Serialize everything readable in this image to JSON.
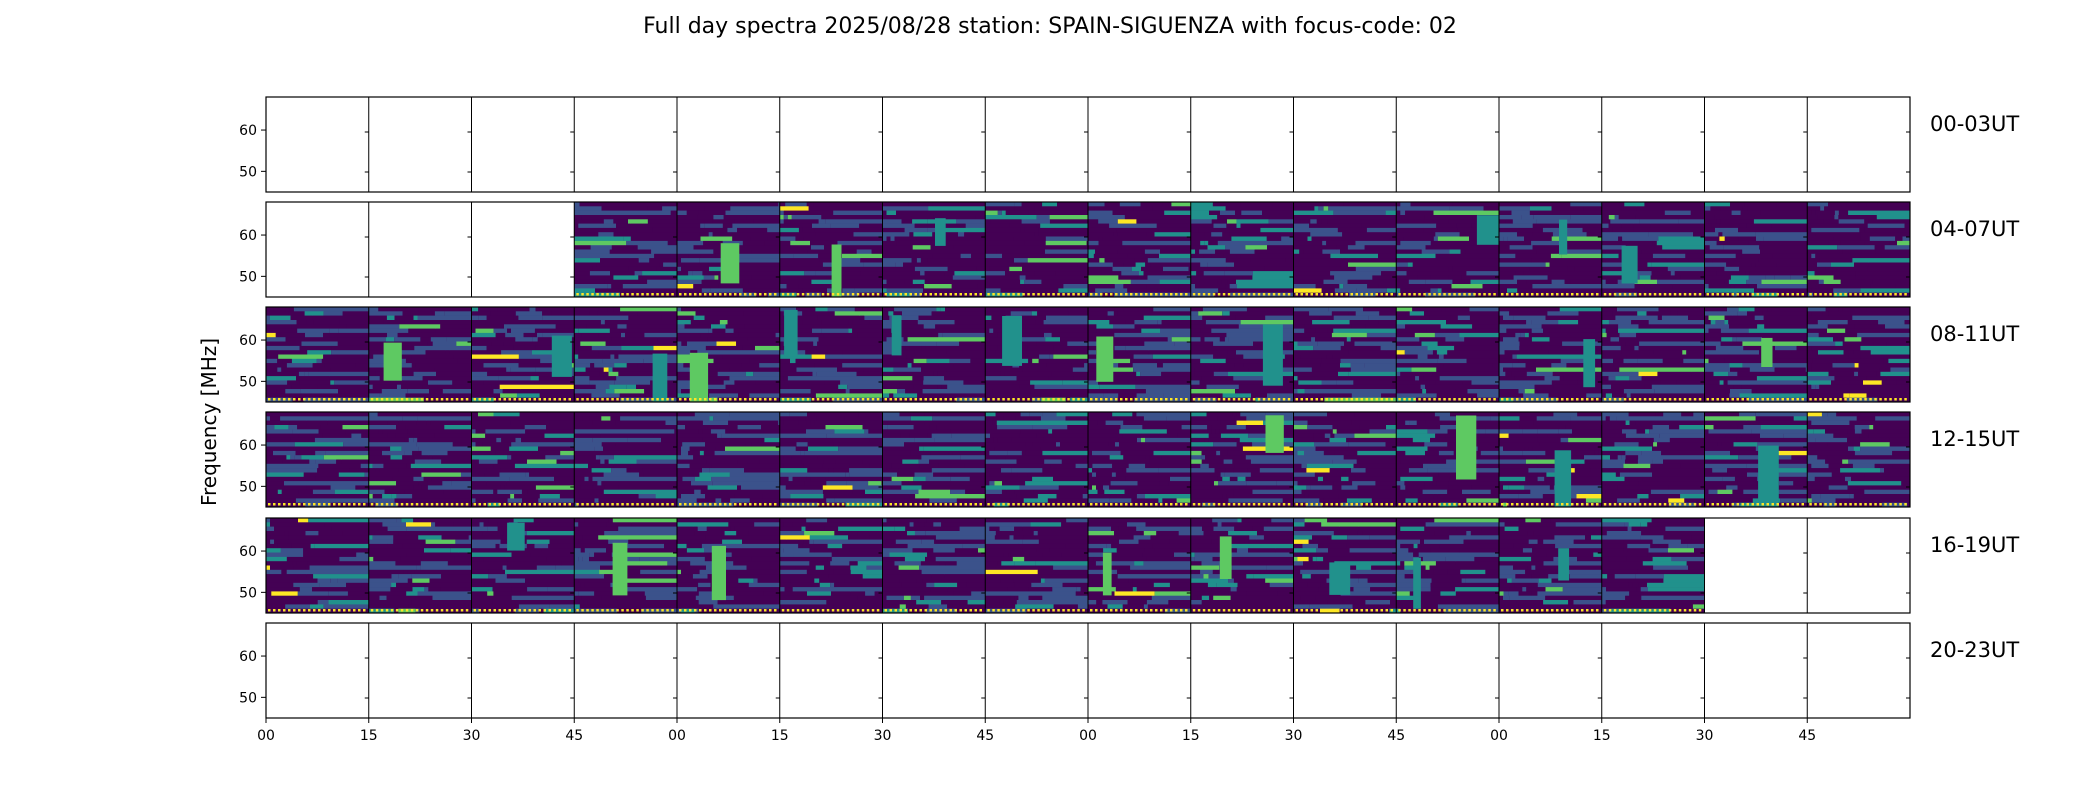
{
  "chart_data": {
    "type": "heatmap",
    "title": "Full day spectra 2025/08/28 station: SPAIN-SIGUENZA with focus-code: 02",
    "ylabel": "Frequency [MHz]",
    "xlabel": "",
    "y_ticks": [
      60,
      50
    ],
    "y_range": [
      45,
      68
    ],
    "x_tick_labels": [
      "00",
      "15",
      "30",
      "45",
      "00",
      "15",
      "30",
      "45",
      "00",
      "15",
      "30",
      "45",
      "00",
      "15",
      "30",
      "45"
    ],
    "rows": [
      {
        "label": "00-03UT",
        "has_data": [
          0,
          0,
          0,
          0,
          0,
          0,
          0,
          0,
          0,
          0,
          0,
          0,
          0,
          0,
          0,
          0
        ]
      },
      {
        "label": "04-07UT",
        "has_data": [
          0,
          0,
          0,
          1,
          1,
          1,
          1,
          1,
          1,
          1,
          1,
          1,
          1,
          1,
          1,
          1
        ]
      },
      {
        "label": "08-11UT",
        "has_data": [
          1,
          1,
          1,
          1,
          1,
          1,
          1,
          1,
          1,
          1,
          1,
          1,
          1,
          1,
          1,
          1
        ]
      },
      {
        "label": "12-15UT",
        "has_data": [
          1,
          1,
          1,
          1,
          1,
          1,
          1,
          1,
          1,
          1,
          1,
          1,
          1,
          1,
          1,
          1
        ]
      },
      {
        "label": "16-19UT",
        "has_data": [
          1,
          1,
          1,
          1,
          1,
          1,
          1,
          1,
          1,
          1,
          1,
          1,
          1,
          1,
          0,
          0
        ]
      },
      {
        "label": "20-23UT",
        "has_data": [
          0,
          0,
          0,
          0,
          0,
          0,
          0,
          0,
          0,
          0,
          0,
          0,
          0,
          0,
          0,
          0
        ]
      }
    ],
    "colormap": [
      "#440154",
      "#3b528b",
      "#21918c",
      "#5ec962",
      "#fde725"
    ],
    "background": "#ffffff"
  }
}
